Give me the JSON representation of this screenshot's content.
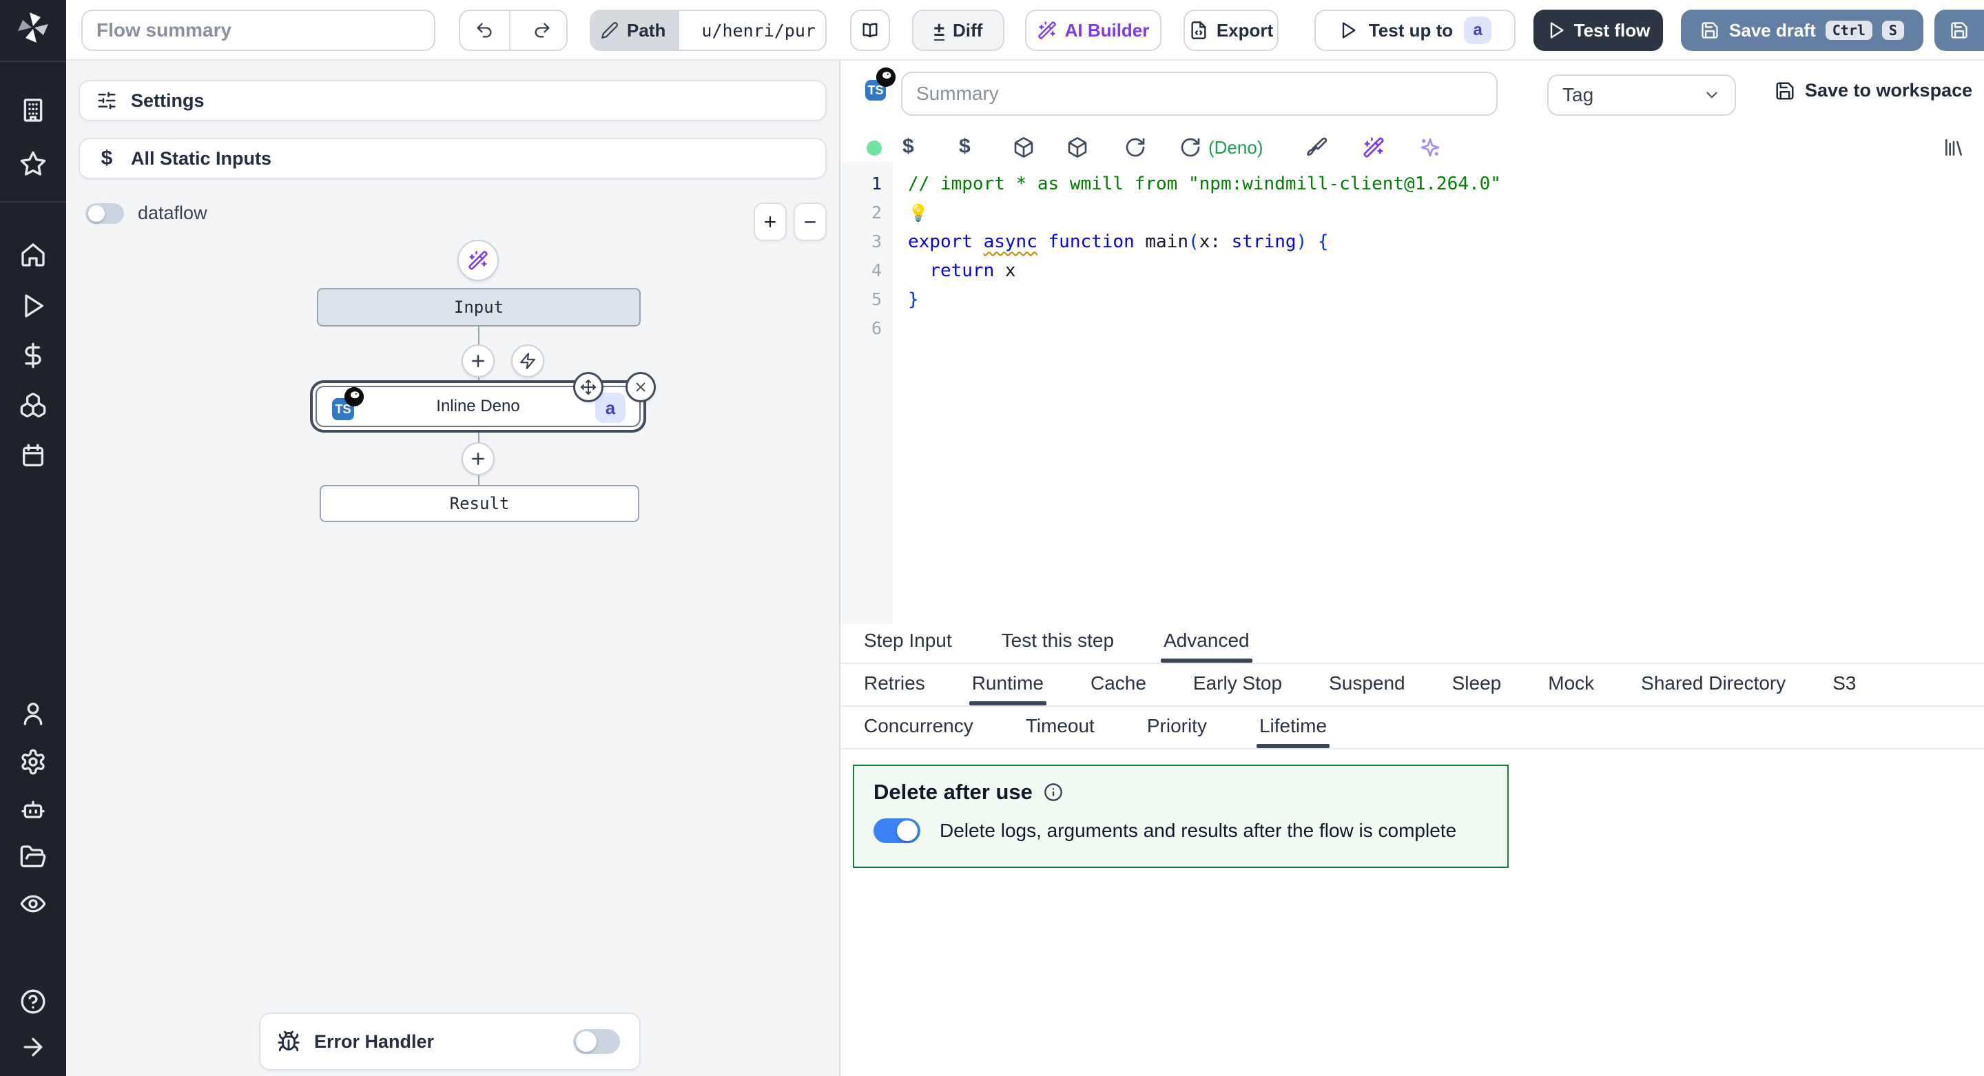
{
  "topbar": {
    "flow_summary_placeholder": "Flow summary",
    "path_label": "Path",
    "path_value": "u/henri/pur",
    "diff_label": "Diff",
    "ai_builder_label": "AI Builder",
    "export_label": "Export",
    "test_up_to_label": "Test up to",
    "test_up_to_badge": "a",
    "test_flow_label": "Test flow",
    "save_draft_label": "Save draft",
    "save_draft_shortcut": [
      "Ctrl",
      "S"
    ]
  },
  "left_panel": {
    "settings_label": "Settings",
    "static_inputs_label": "All Static Inputs",
    "dataflow_label": "dataflow",
    "zoom_in_glyph": "+",
    "zoom_out_glyph": "−",
    "error_handler_label": "Error Handler",
    "graph": {
      "input_label": "Input",
      "step": {
        "lang_badge": "TS",
        "label": "Inline Deno",
        "suffix_badge": "a"
      },
      "result_label": "Result"
    }
  },
  "editor": {
    "summary_placeholder": "Summary",
    "tag_label": "Tag",
    "save_to_workspace_label": "Save to workspace",
    "lang_badge": "TS",
    "runtime_label": "(Deno)",
    "active_line": 1,
    "code_lines": [
      {
        "tokens": [
          {
            "t": "// import * as wmill from \"npm:windmill-client@1.264.0\"",
            "s": "c"
          }
        ]
      },
      {
        "lightbulb": true,
        "tokens": []
      },
      {
        "tokens": [
          {
            "t": "export",
            "s": "k"
          },
          {
            "t": " ",
            "s": "p"
          },
          {
            "t": "async",
            "s": "k sq"
          },
          {
            "t": " ",
            "s": "p"
          },
          {
            "t": "function",
            "s": "k"
          },
          {
            "t": " ",
            "s": "p"
          },
          {
            "t": "main",
            "s": "p"
          },
          {
            "t": "(",
            "s": "b"
          },
          {
            "t": "x",
            "s": "p"
          },
          {
            "t": ": ",
            "s": "p"
          },
          {
            "t": "string",
            "s": "k"
          },
          {
            "t": ")",
            "s": "b"
          },
          {
            "t": " ",
            "s": "p"
          },
          {
            "t": "{",
            "s": "b"
          }
        ]
      },
      {
        "tokens": [
          {
            "t": "  ",
            "s": "p"
          },
          {
            "t": "return",
            "s": "k"
          },
          {
            "t": " x",
            "s": "p"
          }
        ]
      },
      {
        "tokens": [
          {
            "t": "}",
            "s": "b"
          }
        ]
      },
      {
        "tokens": []
      }
    ]
  },
  "tabs": {
    "main": [
      {
        "label": "Step Input"
      },
      {
        "label": "Test this step"
      },
      {
        "label": "Advanced",
        "active": true
      }
    ],
    "advanced": [
      {
        "label": "Retries"
      },
      {
        "label": "Runtime",
        "active": true
      },
      {
        "label": "Cache"
      },
      {
        "label": "Early Stop"
      },
      {
        "label": "Suspend"
      },
      {
        "label": "Sleep"
      },
      {
        "label": "Mock"
      },
      {
        "label": "Shared Directory"
      },
      {
        "label": "S3"
      }
    ],
    "runtime": [
      {
        "label": "Concurrency"
      },
      {
        "label": "Timeout"
      },
      {
        "label": "Priority"
      },
      {
        "label": "Lifetime",
        "active": true
      }
    ]
  },
  "lifetime": {
    "title": "Delete after use",
    "toggle_label": "Delete logs, arguments and results after the flow is complete",
    "toggle_on": true
  },
  "icons": {
    "lightbulb": "💡",
    "diff": "±",
    "dollar": "$"
  },
  "colors": {
    "accent_blue": "#3b82f6",
    "save_draft_blue": "#647fa4",
    "dark_button": "#2c3544",
    "ai_purple": "#7c3aed",
    "deno_green": "#16a34a",
    "delete_border_green": "#15803d",
    "badge_bg": "#dde4fd",
    "badge_text": "#4340bf",
    "ts_badge_blue": "#3178c6"
  }
}
